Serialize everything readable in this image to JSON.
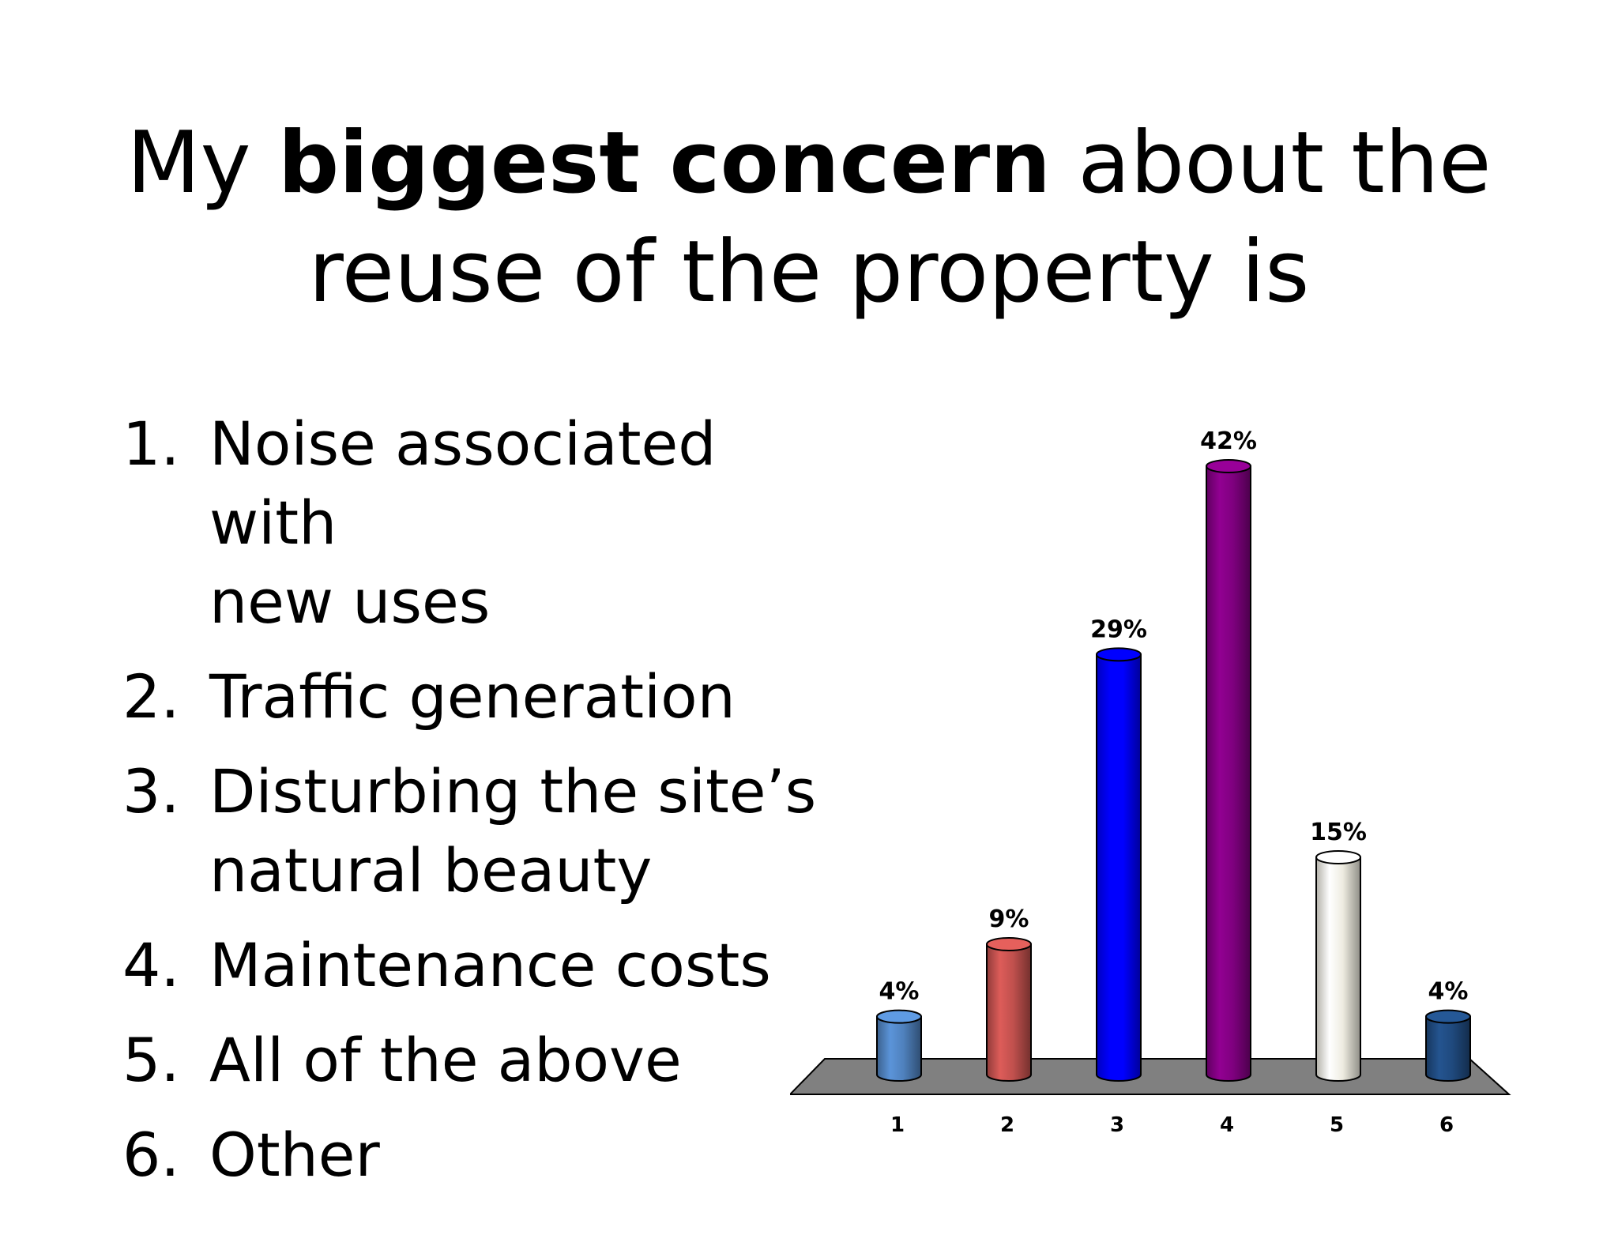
{
  "slide": {
    "title_pre": "My ",
    "title_bold": "biggest concern",
    "title_post": " about the",
    "title_line2": "reuse of the property is"
  },
  "options": [
    {
      "num": "1.",
      "line1": "Noise associated with",
      "line2": "new uses"
    },
    {
      "num": "2.",
      "line1": "Traffic generation",
      "line2": ""
    },
    {
      "num": "3.",
      "line1": "Disturbing the site’s",
      "line2": "natural beauty"
    },
    {
      "num": "4.",
      "line1": "Maintenance costs",
      "line2": ""
    },
    {
      "num": "5.",
      "line1": "All of the above",
      "line2": ""
    },
    {
      "num": "6.",
      "line1": "Other",
      "line2": ""
    }
  ],
  "chart_data": {
    "type": "bar",
    "categories": [
      "1",
      "2",
      "3",
      "4",
      "5",
      "6"
    ],
    "values": [
      4,
      9,
      29,
      42,
      15,
      4
    ],
    "labels": [
      "4%",
      "9%",
      "29%",
      "42%",
      "15%",
      "4%"
    ],
    "colors": [
      "#4f81bd",
      "#c0504d",
      "#0000ff",
      "#7f007f",
      "#eeece1",
      "#1f497d"
    ],
    "floor_color": "#808080",
    "ylim": [
      0,
      42
    ],
    "grid": false,
    "legend": "none"
  }
}
